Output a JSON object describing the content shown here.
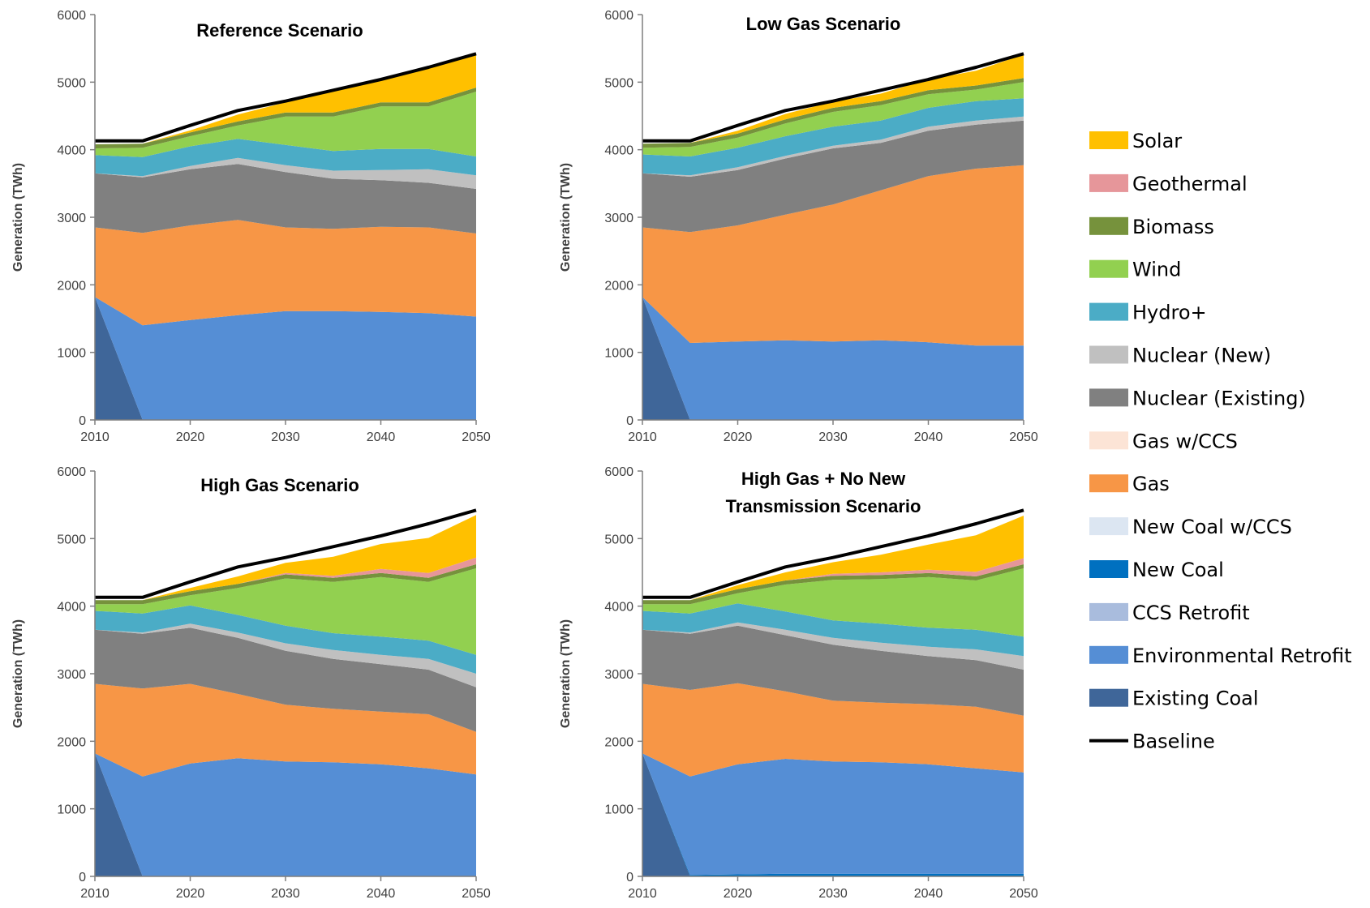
{
  "x": [
    2010,
    2015,
    2020,
    2025,
    2030,
    2035,
    2040,
    2045,
    2050
  ],
  "xticks": [
    2010,
    2020,
    2030,
    2040,
    2050
  ],
  "ylim": [
    0,
    6000
  ],
  "yticks": [
    0,
    1000,
    2000,
    3000,
    4000,
    5000,
    6000
  ],
  "ylabel": "Generation (TWh)",
  "legend": [
    {
      "key": "solar",
      "label": "Solar",
      "color": "#FFC000",
      "kind": "area"
    },
    {
      "key": "geothermal",
      "label": "Geothermal",
      "color": "#E6969A",
      "kind": "area"
    },
    {
      "key": "biomass",
      "label": "Biomass",
      "color": "#76923C",
      "kind": "area"
    },
    {
      "key": "wind",
      "label": "Wind",
      "color": "#92D050",
      "kind": "area"
    },
    {
      "key": "hydro",
      "label": "Hydro+",
      "color": "#4BACC6",
      "kind": "area"
    },
    {
      "key": "nuclear_new",
      "label": "Nuclear (New)",
      "color": "#C0C0C0",
      "kind": "area"
    },
    {
      "key": "nuclear_existing",
      "label": "Nuclear (Existing)",
      "color": "#808080",
      "kind": "area"
    },
    {
      "key": "gas_ccs",
      "label": "Gas w/CCS",
      "color": "#FCE4D6",
      "kind": "area"
    },
    {
      "key": "gas",
      "label": "Gas",
      "color": "#F79646",
      "kind": "area"
    },
    {
      "key": "new_coal_ccs",
      "label": "New Coal w/CCS",
      "color": "#DCE6F2",
      "kind": "area"
    },
    {
      "key": "new_coal",
      "label": "New Coal",
      "color": "#0070C0",
      "kind": "area"
    },
    {
      "key": "ccs_retrofit",
      "label": "CCS Retrofit",
      "color": "#A9BCDD",
      "kind": "area"
    },
    {
      "key": "env_retrofit",
      "label": "Environmental Retrofit",
      "color": "#558ED5",
      "kind": "area"
    },
    {
      "key": "existing_coal",
      "label": "Existing Coal",
      "color": "#3F6699",
      "kind": "area"
    },
    {
      "key": "baseline",
      "label": "Baseline",
      "color": "#000000",
      "kind": "line"
    }
  ],
  "chart_data": [
    {
      "type": "area",
      "title_lines": [
        "Reference Scenario"
      ],
      "stack_order": [
        "existing_coal",
        "env_retrofit",
        "gas",
        "nuclear_existing",
        "nuclear_new",
        "hydro",
        "wind",
        "biomass",
        "geothermal",
        "solar"
      ],
      "series": [
        {
          "name": "Existing Coal",
          "values": [
            1820,
            0,
            0,
            0,
            0,
            0,
            0,
            0,
            0
          ]
        },
        {
          "name": "Environmental Retrofit",
          "values": [
            0,
            1400,
            1480,
            1550,
            1610,
            1610,
            1600,
            1580,
            1530
          ]
        },
        {
          "name": "Gas",
          "values": [
            1030,
            1370,
            1400,
            1410,
            1240,
            1220,
            1260,
            1270,
            1230
          ]
        },
        {
          "name": "Nuclear (Existing)",
          "values": [
            800,
            820,
            830,
            830,
            820,
            740,
            690,
            660,
            660
          ]
        },
        {
          "name": "Nuclear (New)",
          "values": [
            0,
            20,
            50,
            90,
            100,
            120,
            150,
            200,
            200
          ]
        },
        {
          "name": "Hydro+",
          "values": [
            270,
            280,
            290,
            280,
            300,
            290,
            310,
            300,
            280
          ]
        },
        {
          "name": "Wind",
          "values": [
            100,
            140,
            150,
            200,
            420,
            510,
            630,
            630,
            960
          ]
        },
        {
          "name": "Biomass",
          "values": [
            60,
            60,
            55,
            60,
            60,
            60,
            60,
            60,
            60
          ]
        },
        {
          "name": "Geothermal",
          "values": [
            0,
            0,
            0,
            0,
            0,
            0,
            0,
            0,
            0
          ]
        },
        {
          "name": "Solar",
          "values": [
            0,
            0,
            30,
            100,
            150,
            310,
            340,
            520,
            510
          ]
        },
        {
          "name": "Baseline",
          "values": [
            4130,
            4130,
            4360,
            4580,
            4720,
            4880,
            5040,
            5220,
            5420
          ]
        }
      ]
    },
    {
      "type": "area",
      "title_lines": [
        "Low Gas Scenario"
      ],
      "stack_order": [
        "existing_coal",
        "env_retrofit",
        "gas",
        "nuclear_existing",
        "nuclear_new",
        "hydro",
        "wind",
        "biomass",
        "geothermal",
        "solar"
      ],
      "series": [
        {
          "name": "Existing Coal",
          "values": [
            1820,
            0,
            0,
            0,
            0,
            0,
            0,
            0,
            0
          ]
        },
        {
          "name": "Environmental Retrofit",
          "values": [
            0,
            1140,
            1160,
            1180,
            1160,
            1180,
            1150,
            1100,
            1100
          ]
        },
        {
          "name": "Gas",
          "values": [
            1030,
            1640,
            1720,
            1860,
            2030,
            2220,
            2460,
            2620,
            2670
          ]
        },
        {
          "name": "Nuclear (Existing)",
          "values": [
            800,
            820,
            820,
            830,
            830,
            700,
            670,
            650,
            660
          ]
        },
        {
          "name": "Nuclear (New)",
          "values": [
            0,
            20,
            40,
            40,
            40,
            50,
            60,
            60,
            60
          ]
        },
        {
          "name": "Hydro+",
          "values": [
            280,
            280,
            290,
            290,
            280,
            280,
            280,
            290,
            270
          ]
        },
        {
          "name": "Wind",
          "values": [
            100,
            140,
            150,
            190,
            220,
            230,
            200,
            170,
            240
          ]
        },
        {
          "name": "Biomass",
          "values": [
            60,
            60,
            60,
            60,
            60,
            60,
            60,
            60,
            60
          ]
        },
        {
          "name": "Geothermal",
          "values": [
            0,
            0,
            0,
            0,
            0,
            0,
            0,
            0,
            0
          ]
        },
        {
          "name": "Solar",
          "values": [
            0,
            0,
            40,
            80,
            90,
            110,
            160,
            220,
            350
          ]
        },
        {
          "name": "Baseline",
          "values": [
            4130,
            4130,
            4360,
            4580,
            4720,
            4880,
            5040,
            5220,
            5420
          ]
        }
      ]
    },
    {
      "type": "area",
      "title_lines": [
        "High Gas Scenario"
      ],
      "stack_order": [
        "existing_coal",
        "env_retrofit",
        "gas",
        "nuclear_existing",
        "nuclear_new",
        "hydro",
        "wind",
        "biomass",
        "geothermal",
        "solar"
      ],
      "series": [
        {
          "name": "Existing Coal",
          "values": [
            1820,
            0,
            0,
            0,
            0,
            0,
            0,
            0,
            0
          ]
        },
        {
          "name": "Environmental Retrofit",
          "values": [
            0,
            1480,
            1670,
            1750,
            1700,
            1690,
            1660,
            1600,
            1510
          ]
        },
        {
          "name": "Gas",
          "values": [
            1030,
            1300,
            1180,
            950,
            840,
            790,
            780,
            800,
            630
          ]
        },
        {
          "name": "Nuclear (Existing)",
          "values": [
            800,
            810,
            830,
            830,
            800,
            740,
            700,
            660,
            660
          ]
        },
        {
          "name": "Nuclear (New)",
          "values": [
            0,
            20,
            60,
            80,
            110,
            130,
            140,
            160,
            200
          ]
        },
        {
          "name": "Hydro+",
          "values": [
            280,
            280,
            270,
            260,
            260,
            250,
            270,
            270,
            280
          ]
        },
        {
          "name": "Wind",
          "values": [
            100,
            140,
            150,
            400,
            700,
            760,
            880,
            870,
            1280
          ]
        },
        {
          "name": "Biomass",
          "values": [
            60,
            60,
            60,
            60,
            60,
            60,
            60,
            60,
            60
          ]
        },
        {
          "name": "Geothermal",
          "values": [
            0,
            0,
            0,
            0,
            20,
            30,
            60,
            70,
            100
          ]
        },
        {
          "name": "Solar",
          "values": [
            0,
            0,
            50,
            110,
            150,
            280,
            370,
            520,
            630
          ]
        },
        {
          "name": "Baseline",
          "values": [
            4130,
            4130,
            4360,
            4580,
            4720,
            4880,
            5040,
            5220,
            5420
          ]
        }
      ]
    },
    {
      "type": "area",
      "title_lines": [
        "High Gas + No New",
        "Transmission Scenario"
      ],
      "stack_order": [
        "existing_coal",
        "new_coal",
        "env_retrofit",
        "gas",
        "nuclear_existing",
        "nuclear_new",
        "hydro",
        "wind",
        "biomass",
        "geothermal",
        "solar"
      ],
      "series": [
        {
          "name": "Existing Coal",
          "values": [
            1820,
            0,
            0,
            0,
            0,
            0,
            0,
            0,
            0
          ]
        },
        {
          "name": "New Coal",
          "values": [
            0,
            20,
            30,
            40,
            40,
            40,
            40,
            40,
            40
          ]
        },
        {
          "name": "Environmental Retrofit",
          "values": [
            0,
            1460,
            1630,
            1700,
            1660,
            1650,
            1620,
            1560,
            1500
          ]
        },
        {
          "name": "Gas",
          "values": [
            1030,
            1280,
            1200,
            1000,
            900,
            880,
            890,
            910,
            840
          ]
        },
        {
          "name": "Nuclear (Existing)",
          "values": [
            800,
            830,
            850,
            830,
            830,
            770,
            710,
            690,
            680
          ]
        },
        {
          "name": "Nuclear (New)",
          "values": [
            0,
            20,
            50,
            80,
            100,
            120,
            140,
            160,
            200
          ]
        },
        {
          "name": "Hydro+",
          "values": [
            280,
            280,
            280,
            270,
            260,
            280,
            280,
            290,
            290
          ]
        },
        {
          "name": "Wind",
          "values": [
            100,
            140,
            150,
            400,
            600,
            660,
            750,
            730,
            1010
          ]
        },
        {
          "name": "Biomass",
          "values": [
            60,
            60,
            60,
            60,
            60,
            60,
            60,
            60,
            60
          ]
        },
        {
          "name": "Geothermal",
          "values": [
            0,
            0,
            0,
            0,
            30,
            40,
            50,
            70,
            90
          ]
        },
        {
          "name": "Solar",
          "values": [
            0,
            0,
            60,
            120,
            170,
            260,
            370,
            540,
            630
          ]
        },
        {
          "name": "Baseline",
          "values": [
            4130,
            4130,
            4360,
            4580,
            4720,
            4880,
            5040,
            5220,
            5420
          ]
        }
      ]
    }
  ]
}
